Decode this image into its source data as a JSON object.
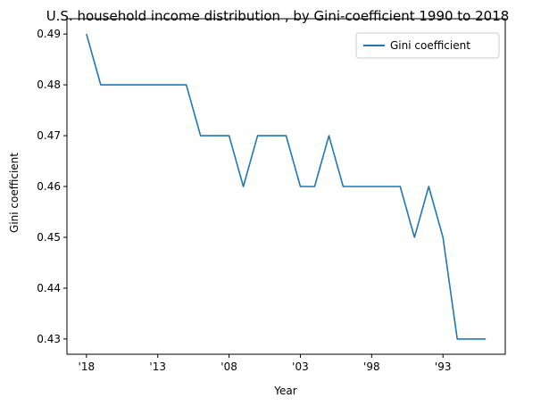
{
  "chart_data": {
    "type": "line",
    "title": "U.S. household income distribution , by Gini-coefficient 1990 to 2018",
    "xlabel": "Year",
    "ylabel": "Gini coefficient",
    "x": [
      2018,
      2017,
      2016,
      2015,
      2014,
      2013,
      2012,
      2011,
      2010,
      2009,
      2008,
      2007,
      2006,
      2005,
      2004,
      2003,
      2002,
      2001,
      2000,
      1999,
      1998,
      1997,
      1996,
      1995,
      1994,
      1993,
      1992,
      1991,
      1990
    ],
    "x_reversed": true,
    "xlim": [
      2018.0,
      1990.0
    ],
    "xticks": [
      {
        "value": 2018,
        "label": "'18"
      },
      {
        "value": 2013,
        "label": "'13"
      },
      {
        "value": 2008,
        "label": "'08"
      },
      {
        "value": 2003,
        "label": "'03"
      },
      {
        "value": 1998,
        "label": "'98"
      },
      {
        "value": 1993,
        "label": "'93"
      }
    ],
    "ylim": [
      0.427,
      0.493
    ],
    "yticks": [
      {
        "value": 0.43,
        "label": "0.43"
      },
      {
        "value": 0.44,
        "label": "0.44"
      },
      {
        "value": 0.45,
        "label": "0.45"
      },
      {
        "value": 0.46,
        "label": "0.46"
      },
      {
        "value": 0.47,
        "label": "0.47"
      },
      {
        "value": 0.48,
        "label": "0.48"
      },
      {
        "value": 0.49,
        "label": "0.49"
      }
    ],
    "series": [
      {
        "name": "Gini coefficient",
        "color": "#1f77b4",
        "values": [
          0.49,
          0.48,
          0.48,
          0.48,
          0.48,
          0.48,
          0.48,
          0.48,
          0.47,
          0.47,
          0.47,
          0.46,
          0.47,
          0.47,
          0.47,
          0.46,
          0.46,
          0.47,
          0.46,
          0.46,
          0.46,
          0.46,
          0.46,
          0.45,
          0.46,
          0.45,
          0.43,
          0.43,
          0.43
        ]
      }
    ],
    "grid": false,
    "legend": "top-right"
  }
}
